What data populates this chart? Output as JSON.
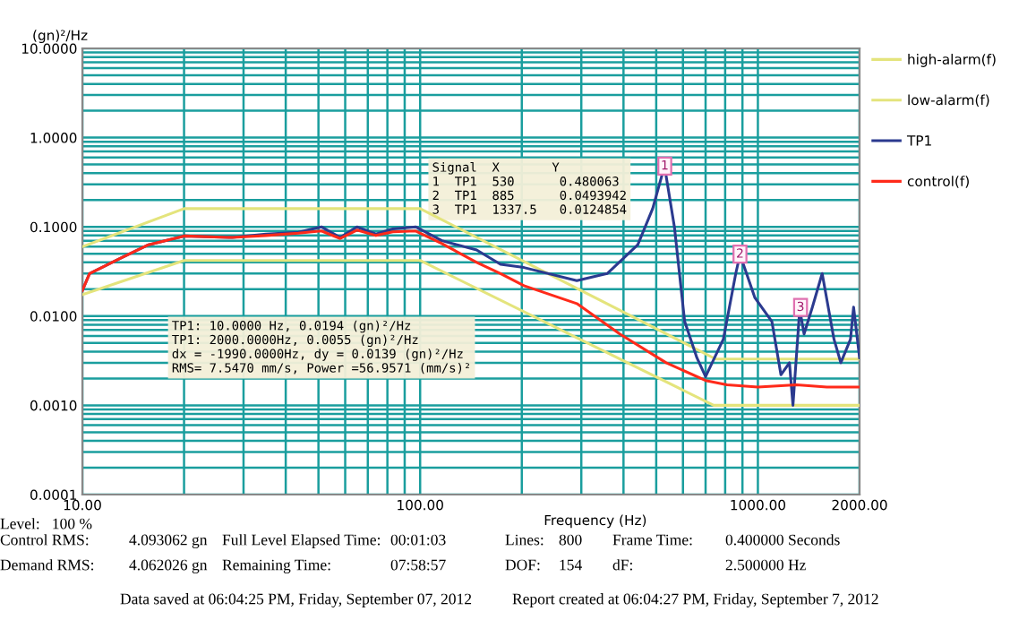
{
  "chart_data": {
    "type": "line",
    "xlabel": "Frequency (Hz)",
    "ylabel": "(gn)²/Hz",
    "log": "xy",
    "xlim": [
      10,
      2000
    ],
    "ylim": [
      0.0001,
      10
    ],
    "xticks": [
      {
        "value": 10,
        "label": "10.00"
      },
      {
        "value": 100,
        "label": "100.00"
      },
      {
        "value": 1000,
        "label": "1000.00"
      },
      {
        "value": 2000,
        "label": "2000.00"
      }
    ],
    "yticks": [
      {
        "value": 0.0001,
        "label": "0.0001"
      },
      {
        "value": 0.001,
        "label": "0.0010"
      },
      {
        "value": 0.01,
        "label": "0.0100"
      },
      {
        "value": 0.1,
        "label": "0.1000"
      },
      {
        "value": 1,
        "label": "1.0000"
      },
      {
        "value": 10,
        "label": "10.0000"
      }
    ],
    "grid": true,
    "legend": "right",
    "series": [
      {
        "name": "high-alarm(f)",
        "color": "#e4e47c",
        "x": [
          10,
          20,
          100,
          750,
          2000
        ],
        "values": [
          0.06,
          0.16,
          0.16,
          0.0033,
          0.0033
        ]
      },
      {
        "name": "low-alarm(f)",
        "color": "#e4e47c",
        "x": [
          10,
          20,
          100,
          740,
          2000
        ],
        "values": [
          0.0174,
          0.042,
          0.042,
          0.001,
          0.001
        ]
      },
      {
        "name": "TP1",
        "color": "#2b3a8f",
        "x": [
          10,
          10.5,
          12.9,
          15.7,
          20,
          27.8,
          35,
          43.6,
          51,
          58,
          65,
          74,
          83,
          97,
          116,
          147,
          173,
          203,
          291,
          358,
          441,
          488,
          529,
          566,
          607,
          660,
          700,
          790,
          860,
          885,
          980,
          1100,
          1170,
          1240,
          1270,
          1330,
          1370,
          1450,
          1550,
          1680,
          1760,
          1880,
          1920,
          2000
        ],
        "values": [
          0.0194,
          0.03,
          0.044,
          0.063,
          0.079,
          0.076,
          0.083,
          0.087,
          0.1,
          0.076,
          0.1,
          0.083,
          0.095,
          0.1,
          0.07,
          0.055,
          0.038,
          0.035,
          0.025,
          0.03,
          0.063,
          0.16,
          0.48,
          0.1,
          0.0087,
          0.0034,
          0.0021,
          0.0055,
          0.03,
          0.049,
          0.016,
          0.0087,
          0.0022,
          0.003,
          0.001,
          0.012,
          0.0063,
          0.0126,
          0.03,
          0.0055,
          0.003,
          0.0055,
          0.0126,
          0.0034
        ]
      },
      {
        "name": "control(f)",
        "color": "#ff2a1a",
        "x": [
          10,
          10.5,
          12.9,
          15.7,
          20,
          27.8,
          35,
          43.6,
          51,
          58,
          65,
          74,
          83,
          97,
          116,
          147,
          173,
          203,
          291,
          390,
          535,
          700,
          810,
          1000,
          1300,
          1600,
          2000
        ],
        "values": [
          0.0194,
          0.03,
          0.044,
          0.063,
          0.079,
          0.076,
          0.08,
          0.085,
          0.09,
          0.074,
          0.092,
          0.08,
          0.088,
          0.09,
          0.065,
          0.04,
          0.03,
          0.0219,
          0.0138,
          0.0063,
          0.003,
          0.0019,
          0.0017,
          0.0016,
          0.0017,
          0.0016,
          0.0016
        ]
      }
    ],
    "annotations": [
      {
        "text": "1",
        "x": 530,
        "y": 0.48
      },
      {
        "text": "2",
        "x": 885,
        "y": 0.0494
      },
      {
        "text": "3",
        "x": 1337.5,
        "y": 0.0125
      },
      "Signal  X       Y\n1  TP1  530      0.480063\n2  TP1  885      0.0493942\n3  TP1  1337.5   0.0124854",
      "TP1: 10.0000 Hz, 0.0194 (gn)²/Hz\nTP1: 2000.0000Hz, 0.0055 (gn)²/Hz\ndx = -1990.0000Hz, dy = 0.0139 (gn)²/Hz\nRMS= 7.5470 mm/s, Power =56.9571 (mm/s)²",
      "Level:   100 %",
      "Control RMS:",
      "4.093062 gn",
      "Full Level Elapsed Time:",
      "00:01:03",
      "Lines:",
      "800",
      "Frame Time:",
      "0.400000 Seconds",
      "Demand RMS:",
      "4.062026 gn",
      "Remaining Time:",
      "07:58:57",
      "DOF:",
      "154",
      "dF:",
      "2.500000 Hz",
      "Data saved at 06:04:25 PM, Friday, September 07, 2012",
      "Report created at 06:04:27 PM, Friday, September 7, 2012"
    ]
  }
}
